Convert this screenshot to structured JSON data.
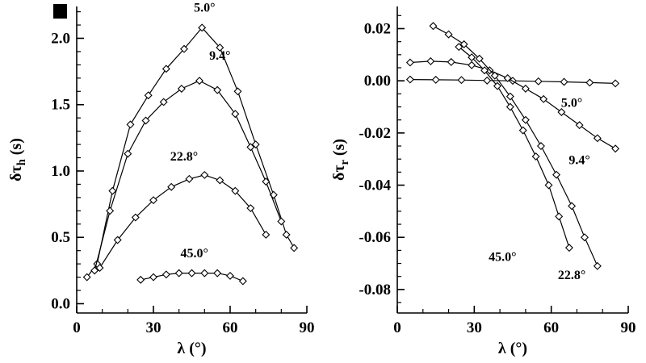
{
  "figure": {
    "background": "#ffffff",
    "ink": "#000000",
    "marker_fill": "#ffffff"
  },
  "chart_data": [
    {
      "type": "line",
      "title": "",
      "xlabel": "λ (°)",
      "ylabel": {
        "pre": "δτ",
        "sub": "h",
        "post": " (s)"
      },
      "xlim": [
        0,
        90
      ],
      "ylim": [
        -0.07,
        2.24
      ],
      "xticks": [
        0,
        30,
        60,
        90
      ],
      "xtick_labels": [
        "0",
        "30",
        "60",
        "90"
      ],
      "yticks": [
        0,
        0.5,
        1,
        1.5,
        2
      ],
      "ytick_labels": [
        "0.0",
        "0.5",
        "1.0",
        "1.5",
        "2.0"
      ],
      "xminor_step": 10,
      "yminor_step": 0.1,
      "grid": false,
      "legend": "inline-annotations",
      "marker": "open-diamond",
      "series": [
        {
          "name": "5.0°",
          "points": [
            [
              4,
              0.2
            ],
            [
              8,
              0.3
            ],
            [
              14,
              0.85
            ],
            [
              21,
              1.35
            ],
            [
              28,
              1.57
            ],
            [
              35,
              1.77
            ],
            [
              42,
              1.92
            ],
            [
              49,
              2.08
            ],
            [
              56,
              1.93
            ],
            [
              63,
              1.6
            ],
            [
              70,
              1.2
            ],
            [
              77,
              0.82
            ],
            [
              82,
              0.52
            ],
            [
              85,
              0.42
            ]
          ]
        },
        {
          "name": "9.4°",
          "points": [
            [
              7,
              0.25
            ],
            [
              13,
              0.7
            ],
            [
              20,
              1.13
            ],
            [
              27,
              1.38
            ],
            [
              34,
              1.52
            ],
            [
              41,
              1.62
            ],
            [
              48,
              1.68
            ],
            [
              55,
              1.61
            ],
            [
              62,
              1.43
            ],
            [
              68,
              1.18
            ],
            [
              74,
              0.92
            ],
            [
              80,
              0.62
            ]
          ]
        },
        {
          "name": "22.8°",
          "points": [
            [
              9,
              0.27
            ],
            [
              16,
              0.48
            ],
            [
              23,
              0.65
            ],
            [
              30,
              0.78
            ],
            [
              37,
              0.88
            ],
            [
              44,
              0.94
            ],
            [
              50,
              0.97
            ],
            [
              56,
              0.93
            ],
            [
              62,
              0.85
            ],
            [
              68,
              0.72
            ],
            [
              74,
              0.52
            ]
          ]
        },
        {
          "name": "45.0°",
          "points": [
            [
              25,
              0.18
            ],
            [
              30,
              0.2
            ],
            [
              35,
              0.22
            ],
            [
              40,
              0.23
            ],
            [
              45,
              0.23
            ],
            [
              50,
              0.23
            ],
            [
              55,
              0.23
            ],
            [
              60,
              0.21
            ],
            [
              65,
              0.17
            ]
          ]
        }
      ],
      "annotations": [
        {
          "text": "5.0°",
          "x": 50,
          "y": 2.2
        },
        {
          "text": "9.4°",
          "x": 56,
          "y": 1.84
        },
        {
          "text": "22.8°",
          "x": 42,
          "y": 1.08
        },
        {
          "text": "45.0°",
          "x": 46,
          "y": 0.35
        }
      ]
    },
    {
      "type": "line",
      "title": "",
      "xlabel": "λ (°)",
      "ylabel": {
        "pre": "δτ",
        "sub": "r",
        "post": " (s)"
      },
      "xlim": [
        0,
        90
      ],
      "ylim": [
        -0.089,
        0.0285
      ],
      "xticks": [
        0,
        30,
        60,
        90
      ],
      "xtick_labels": [
        "0",
        "30",
        "60",
        "90"
      ],
      "yticks": [
        0.02,
        0,
        -0.02,
        -0.04,
        -0.06,
        -0.08
      ],
      "ytick_labels": [
        "0.02",
        "0.00",
        "-0.02",
        "-0.04",
        "-0.06",
        "-0.08"
      ],
      "xminor_step": 10,
      "yminor_step": 0.005,
      "grid": false,
      "legend": "inline-annotations",
      "marker": "open-diamond",
      "series": [
        {
          "name": "5.0°",
          "points": [
            [
              5,
              0.0005
            ],
            [
              15,
              0.0004
            ],
            [
              25,
              0.0003
            ],
            [
              35,
              0.0001
            ],
            [
              45,
              0.0
            ],
            [
              55,
              -0.0002
            ],
            [
              65,
              -0.0004
            ],
            [
              75,
              -0.0007
            ],
            [
              85,
              -0.001
            ]
          ]
        },
        {
          "name": "9.4°",
          "points": [
            [
              5,
              0.007
            ],
            [
              13,
              0.0075
            ],
            [
              21,
              0.0072
            ],
            [
              29,
              0.006
            ],
            [
              36,
              0.004
            ],
            [
              43,
              0.001
            ],
            [
              50,
              -0.003
            ],
            [
              57,
              -0.007
            ],
            [
              64,
              -0.012
            ],
            [
              71,
              -0.017
            ],
            [
              78,
              -0.022
            ],
            [
              85,
              -0.026
            ]
          ]
        },
        {
          "name": "22.8°",
          "points": [
            [
              14,
              0.021
            ],
            [
              20,
              0.0178
            ],
            [
              26,
              0.014
            ],
            [
              32,
              0.0085
            ],
            [
              38,
              0.002
            ],
            [
              44,
              -0.006
            ],
            [
              50,
              -0.015
            ],
            [
              56,
              -0.025
            ],
            [
              62,
              -0.036
            ],
            [
              68,
              -0.048
            ],
            [
              73,
              -0.06
            ],
            [
              78,
              -0.071
            ]
          ]
        },
        {
          "name": "45.0°",
          "points": [
            [
              24,
              0.013
            ],
            [
              29,
              0.009
            ],
            [
              34,
              0.004
            ],
            [
              39,
              -0.002
            ],
            [
              44,
              -0.01
            ],
            [
              49,
              -0.019
            ],
            [
              54,
              -0.029
            ],
            [
              59,
              -0.04
            ],
            [
              63,
              -0.052
            ],
            [
              67,
              -0.064
            ]
          ]
        }
      ],
      "annotations": [
        {
          "text": "5.0°",
          "x": 68,
          "y": -0.01
        },
        {
          "text": "9.4°",
          "x": 71,
          "y": -0.032
        },
        {
          "text": "45.0°",
          "x": 41,
          "y": -0.069
        },
        {
          "text": "22.8°",
          "x": 68,
          "y": -0.076
        }
      ]
    }
  ]
}
